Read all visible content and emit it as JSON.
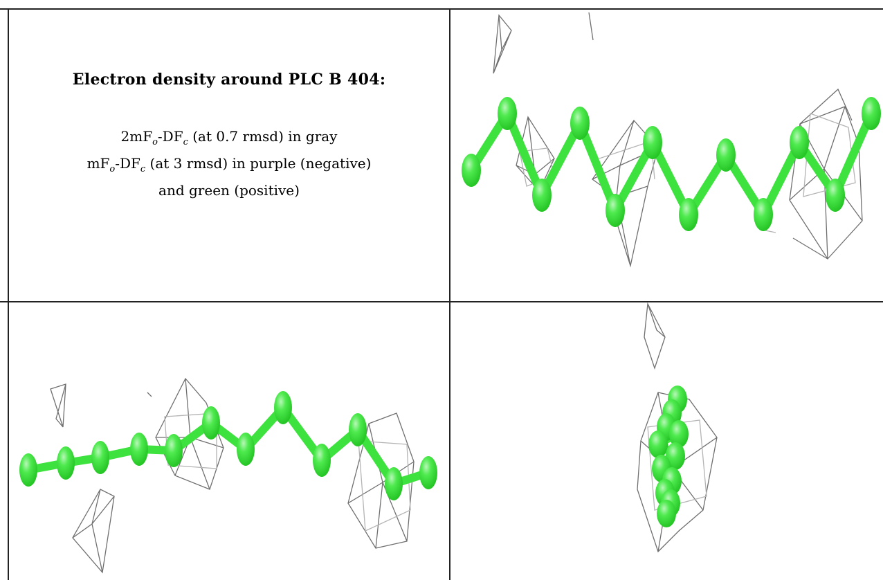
{
  "legend": {
    "title": "Electron density around PLC B 404:",
    "line1": {
      "prefix": "2mF",
      "sub1": "o",
      "mid": "-DF",
      "sub2": "c",
      "suffix": " (at 0.7 rmsd) in gray"
    },
    "line2": {
      "prefix": "mF",
      "sub1": "o",
      "mid": "-DF",
      "sub2": "c",
      "suffix": " (at 3 rmsd) in purple (negative)"
    },
    "line3": "and green (positive)"
  },
  "colors": {
    "ligand_atom": "#3ee23e",
    "ligand_highlight": "#b8f7b8",
    "density_2fofc_mesh": "#707070",
    "table_border": "#222222"
  },
  "panels": [
    {
      "name": "view-top-right",
      "content": "ligand stick model with gray density mesh"
    },
    {
      "name": "view-bottom-left",
      "content": "ligand stick model with gray density mesh"
    },
    {
      "name": "view-bottom-right",
      "content": "ligand end-on view with gray density mesh"
    }
  ]
}
